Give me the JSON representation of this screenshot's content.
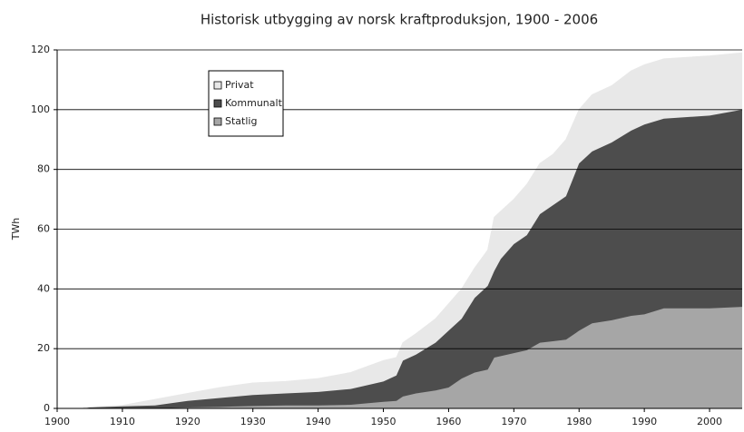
{
  "chart_data": {
    "type": "area",
    "stacked": true,
    "title": "Historisk utbygging av norsk kraftproduksjon, 1900 -  2006",
    "y_label": "TWh",
    "x": [
      1904,
      1905,
      1910,
      1915,
      1920,
      1925,
      1930,
      1935,
      1940,
      1945,
      1950,
      1952,
      1953,
      1955,
      1958,
      1960,
      1962,
      1964,
      1966,
      1967,
      1968,
      1970,
      1972,
      1974,
      1976,
      1978,
      1980,
      1982,
      1985,
      1988,
      1990,
      1993,
      2000,
      2005
    ],
    "series": [
      {
        "name": "Statlig",
        "color": "#a6a6a6",
        "values": [
          0,
          0,
          0,
          0,
          0.3,
          0.5,
          0.8,
          1,
          1,
          1.2,
          2.2,
          2.5,
          4,
          5,
          6,
          7,
          10,
          12,
          13,
          17,
          17.5,
          18.5,
          19.5,
          22,
          22.5,
          23,
          26,
          28.5,
          29.5,
          31,
          31.5,
          33.5,
          33.5,
          34
        ]
      },
      {
        "name": "Kommunalt",
        "color": "#4d4d4d",
        "values": [
          0,
          0.3,
          0.7,
          1,
          2.2,
          3,
          3.7,
          4,
          4.5,
          5.3,
          6.8,
          8.5,
          12,
          13,
          16,
          19,
          20,
          25,
          28,
          29,
          32.5,
          36.5,
          38.5,
          43,
          45.5,
          48,
          56,
          57.5,
          59.5,
          62,
          63.5,
          63.5,
          64.5,
          66
        ]
      },
      {
        "name": "Privat",
        "color": "#e8e8e8",
        "values": [
          0.3,
          0.2,
          0.3,
          2,
          2.5,
          3.5,
          4,
          4,
          4.5,
          5.5,
          7,
          6,
          6,
          7,
          8,
          9,
          10,
          10,
          12,
          18,
          16,
          15,
          17,
          17,
          17,
          19,
          18,
          19,
          19,
          20,
          20,
          20,
          20,
          19
        ]
      }
    ],
    "legend_order": [
      2,
      1,
      0
    ],
    "xlim": [
      1900,
      2005
    ],
    "xticks": [
      1900,
      1910,
      1920,
      1930,
      1940,
      1950,
      1960,
      1970,
      1980,
      1990,
      2000
    ],
    "ylim": [
      0,
      120
    ],
    "yticks": [
      0,
      20,
      40,
      60,
      80,
      100,
      120
    ],
    "grid": true
  }
}
